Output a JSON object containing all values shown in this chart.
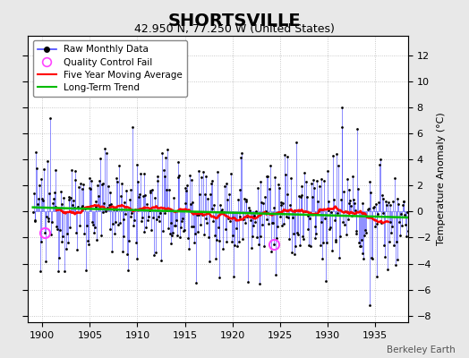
{
  "title": "SHORTSVILLE",
  "subtitle": "42.950 N, 77.250 W (United States)",
  "ylabel": "Temperature Anomaly (°C)",
  "credit": "Berkeley Earth",
  "xlim": [
    1898.5,
    1938.5
  ],
  "ylim": [
    -8.5,
    13.5
  ],
  "yticks": [
    -8,
    -6,
    -4,
    -2,
    0,
    2,
    4,
    6,
    8,
    10,
    12
  ],
  "xticks": [
    1900,
    1905,
    1910,
    1915,
    1920,
    1925,
    1930,
    1935
  ],
  "bg_color": "#e8e8e8",
  "plot_bg_color": "#ffffff",
  "raw_line_color": "#4444ff",
  "raw_dot_color": "#000000",
  "moving_avg_color": "#ff0000",
  "trend_color": "#00bb00",
  "qc_fail_color": "#ff44ff",
  "title_fontsize": 14,
  "subtitle_fontsize": 9,
  "label_fontsize": 8,
  "tick_fontsize": 8
}
